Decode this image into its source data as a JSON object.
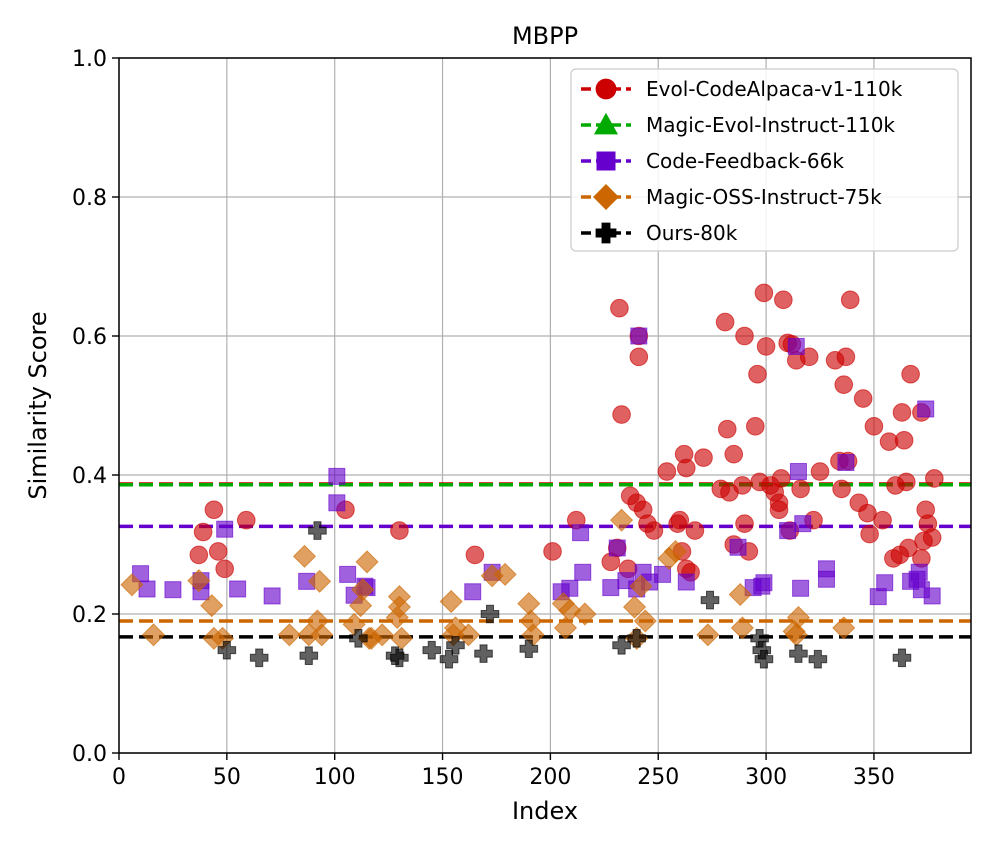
{
  "chart_data": {
    "type": "scatter",
    "title": "MBPP",
    "xlabel": "Index",
    "ylabel": "Similarity Score",
    "xlim": [
      0,
      395
    ],
    "ylim": [
      0.0,
      1.0
    ],
    "xticks": [
      0,
      50,
      100,
      150,
      200,
      250,
      300,
      350
    ],
    "yticks": [
      0.0,
      0.2,
      0.4,
      0.6,
      0.8,
      1.0
    ],
    "xtick_labels": [
      "0",
      "50",
      "100",
      "150",
      "200",
      "250",
      "300",
      "350"
    ],
    "ytick_labels": [
      "0.0",
      "0.2",
      "0.4",
      "0.6",
      "0.8",
      "1.0"
    ],
    "grid": true,
    "legend_position": "top-right",
    "series": [
      {
        "name": "Evol-CodeAlpaca-v1-110k",
        "color": "#cc0000",
        "marker": "circle",
        "mean": 0.387,
        "points": [
          [
            37,
            0.285
          ],
          [
            39,
            0.318
          ],
          [
            44,
            0.35
          ],
          [
            46,
            0.29
          ],
          [
            49,
            0.265
          ],
          [
            59,
            0.335
          ],
          [
            105,
            0.35
          ],
          [
            130,
            0.32
          ],
          [
            165,
            0.285
          ],
          [
            201,
            0.29
          ],
          [
            212,
            0.335
          ],
          [
            228,
            0.275
          ],
          [
            231,
            0.295
          ],
          [
            232,
            0.64
          ],
          [
            233,
            0.487
          ],
          [
            236,
            0.265
          ],
          [
            237,
            0.37
          ],
          [
            240,
            0.36
          ],
          [
            241,
            0.6
          ],
          [
            241,
            0.57
          ],
          [
            243,
            0.35
          ],
          [
            245,
            0.33
          ],
          [
            248,
            0.32
          ],
          [
            254,
            0.405
          ],
          [
            259,
            0.33
          ],
          [
            260,
            0.335
          ],
          [
            261,
            0.29
          ],
          [
            262,
            0.43
          ],
          [
            263,
            0.41
          ],
          [
            263,
            0.265
          ],
          [
            265,
            0.26
          ],
          [
            267,
            0.32
          ],
          [
            271,
            0.425
          ],
          [
            279,
            0.38
          ],
          [
            281,
            0.62
          ],
          [
            282,
            0.466
          ],
          [
            283,
            0.375
          ],
          [
            285,
            0.43
          ],
          [
            285,
            0.3
          ],
          [
            289,
            0.385
          ],
          [
            290,
            0.33
          ],
          [
            290,
            0.6
          ],
          [
            292,
            0.29
          ],
          [
            295,
            0.47
          ],
          [
            296,
            0.545
          ],
          [
            297,
            0.39
          ],
          [
            299,
            0.662
          ],
          [
            300,
            0.585
          ],
          [
            302,
            0.385
          ],
          [
            304,
            0.375
          ],
          [
            306,
            0.36
          ],
          [
            306,
            0.35
          ],
          [
            307,
            0.395
          ],
          [
            308,
            0.652
          ],
          [
            310,
            0.59
          ],
          [
            311,
            0.32
          ],
          [
            312,
            0.588
          ],
          [
            314,
            0.565
          ],
          [
            316,
            0.38
          ],
          [
            320,
            0.57
          ],
          [
            322,
            0.335
          ],
          [
            325,
            0.405
          ],
          [
            332,
            0.565
          ],
          [
            334,
            0.42
          ],
          [
            335,
            0.38
          ],
          [
            336,
            0.53
          ],
          [
            337,
            0.57
          ],
          [
            338,
            0.42
          ],
          [
            339,
            0.652
          ],
          [
            343,
            0.36
          ],
          [
            345,
            0.51
          ],
          [
            347,
            0.345
          ],
          [
            348,
            0.315
          ],
          [
            350,
            0.47
          ],
          [
            354,
            0.335
          ],
          [
            357,
            0.448
          ],
          [
            359,
            0.28
          ],
          [
            360,
            0.385
          ],
          [
            362,
            0.285
          ],
          [
            363,
            0.49
          ],
          [
            364,
            0.45
          ],
          [
            365,
            0.39
          ],
          [
            366,
            0.295
          ],
          [
            367,
            0.545
          ],
          [
            372,
            0.28
          ],
          [
            372,
            0.49
          ],
          [
            373,
            0.305
          ],
          [
            374,
            0.35
          ],
          [
            375,
            0.33
          ],
          [
            377,
            0.31
          ],
          [
            378,
            0.395
          ]
        ]
      },
      {
        "name": "Magic-Evol-Instruct-110k",
        "color": "#00aa00",
        "marker": "triangle",
        "mean": 0.386,
        "points": []
      },
      {
        "name": "Code-Feedback-66k",
        "color": "#6600cc",
        "marker": "square",
        "mean": 0.326,
        "points": [
          [
            10,
            0.258
          ],
          [
            13,
            0.236
          ],
          [
            25,
            0.235
          ],
          [
            38,
            0.232
          ],
          [
            38,
            0.248
          ],
          [
            49,
            0.322
          ],
          [
            55,
            0.236
          ],
          [
            71,
            0.226
          ],
          [
            87,
            0.247
          ],
          [
            101,
            0.398
          ],
          [
            101,
            0.36
          ],
          [
            106,
            0.257
          ],
          [
            109,
            0.227
          ],
          [
            114,
            0.24
          ],
          [
            115,
            0.238
          ],
          [
            164,
            0.232
          ],
          [
            173,
            0.26
          ],
          [
            205,
            0.232
          ],
          [
            209,
            0.237
          ],
          [
            214,
            0.317
          ],
          [
            215,
            0.26
          ],
          [
            228,
            0.238
          ],
          [
            231,
            0.295
          ],
          [
            235,
            0.248
          ],
          [
            240,
            0.236
          ],
          [
            241,
            0.6
          ],
          [
            243,
            0.26
          ],
          [
            246,
            0.246
          ],
          [
            252,
            0.257
          ],
          [
            263,
            0.246
          ],
          [
            287,
            0.296
          ],
          [
            294,
            0.238
          ],
          [
            298,
            0.24
          ],
          [
            299,
            0.245
          ],
          [
            310,
            0.32
          ],
          [
            314,
            0.585
          ],
          [
            315,
            0.405
          ],
          [
            316,
            0.237
          ],
          [
            317,
            0.33
          ],
          [
            328,
            0.265
          ],
          [
            328,
            0.25
          ],
          [
            337,
            0.418
          ],
          [
            352,
            0.225
          ],
          [
            355,
            0.245
          ],
          [
            367,
            0.247
          ],
          [
            370,
            0.25
          ],
          [
            371,
            0.26
          ],
          [
            372,
            0.235
          ],
          [
            374,
            0.495
          ],
          [
            377,
            0.226
          ]
        ]
      },
      {
        "name": "Magic-OSS-Instruct-75k",
        "color": "#cc6600",
        "marker": "diamond",
        "mean": 0.19,
        "points": [
          [
            6,
            0.242
          ],
          [
            16,
            0.17
          ],
          [
            37,
            0.248
          ],
          [
            43,
            0.212
          ],
          [
            44,
            0.165
          ],
          [
            48,
            0.165
          ],
          [
            79,
            0.17
          ],
          [
            86,
            0.283
          ],
          [
            88,
            0.17
          ],
          [
            92,
            0.19
          ],
          [
            93,
            0.247
          ],
          [
            94,
            0.17
          ],
          [
            109,
            0.185
          ],
          [
            112,
            0.212
          ],
          [
            113,
            0.235
          ],
          [
            115,
            0.275
          ],
          [
            116,
            0.165
          ],
          [
            117,
            0.165
          ],
          [
            122,
            0.17
          ],
          [
            129,
            0.195
          ],
          [
            130,
            0.21
          ],
          [
            130,
            0.225
          ],
          [
            131,
            0.165
          ],
          [
            154,
            0.218
          ],
          [
            155,
            0.17
          ],
          [
            156,
            0.18
          ],
          [
            162,
            0.17
          ],
          [
            173,
            0.255
          ],
          [
            179,
            0.257
          ],
          [
            190,
            0.215
          ],
          [
            191,
            0.19
          ],
          [
            192,
            0.17
          ],
          [
            206,
            0.215
          ],
          [
            207,
            0.18
          ],
          [
            209,
            0.205
          ],
          [
            216,
            0.2
          ],
          [
            233,
            0.335
          ],
          [
            239,
            0.21
          ],
          [
            240,
            0.165
          ],
          [
            242,
            0.24
          ],
          [
            244,
            0.19
          ],
          [
            255,
            0.28
          ],
          [
            258,
            0.29
          ],
          [
            273,
            0.17
          ],
          [
            288,
            0.228
          ],
          [
            289,
            0.18
          ],
          [
            313,
            0.175
          ],
          [
            314,
            0.17
          ],
          [
            315,
            0.195
          ],
          [
            336,
            0.18
          ]
        ]
      },
      {
        "name": "Ours-80k",
        "color": "#000000",
        "marker": "plus",
        "mean": 0.167,
        "points": [
          [
            50,
            0.148
          ],
          [
            65,
            0.137
          ],
          [
            88,
            0.14
          ],
          [
            92,
            0.32
          ],
          [
            111,
            0.165
          ],
          [
            128,
            0.14
          ],
          [
            130,
            0.137
          ],
          [
            145,
            0.148
          ],
          [
            153,
            0.135
          ],
          [
            156,
            0.155
          ],
          [
            169,
            0.143
          ],
          [
            172,
            0.2
          ],
          [
            190,
            0.15
          ],
          [
            233,
            0.155
          ],
          [
            240,
            0.165
          ],
          [
            274,
            0.22
          ],
          [
            297,
            0.165
          ],
          [
            298,
            0.148
          ],
          [
            299,
            0.135
          ],
          [
            315,
            0.143
          ],
          [
            324,
            0.135
          ],
          [
            363,
            0.137
          ]
        ]
      }
    ]
  }
}
